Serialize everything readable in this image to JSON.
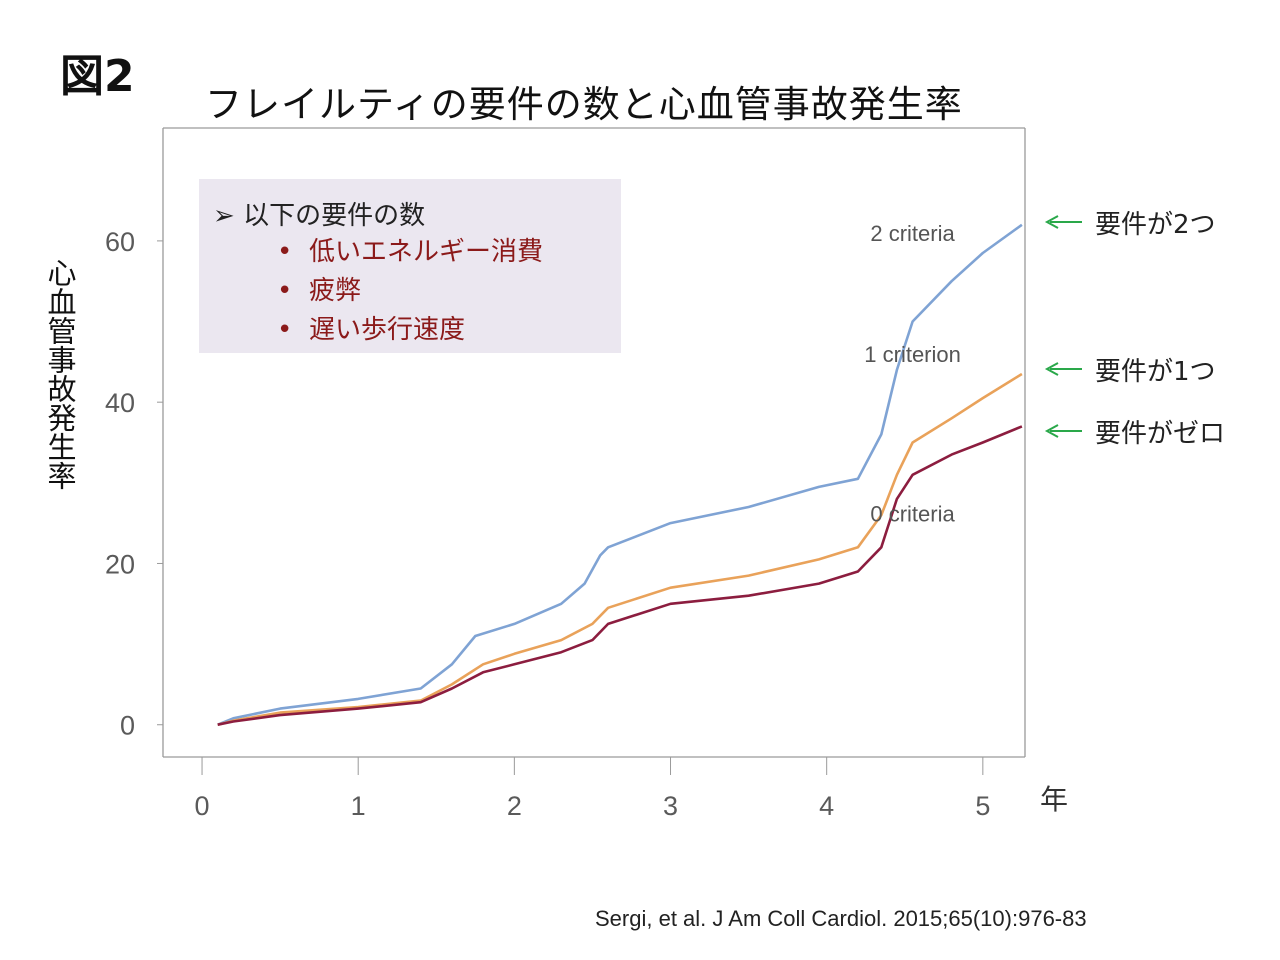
{
  "figure_label": "図2",
  "title": "フレイルティの要件の数と心血管事故発生率",
  "ylabel": "心血管事故発生率",
  "x_unit": "年",
  "criteria_box": {
    "heading": "以下の要件の数",
    "items": [
      "低いエネルギー消費",
      "疲弊",
      "遅い歩行速度"
    ]
  },
  "right_labels": [
    "要件が2つ",
    "要件が1つ",
    "要件がゼロ"
  ],
  "citation": "Sergi, et al. J Am Coll Cardiol. 2015;65(10):976-83",
  "colors": {
    "two": "#7fa3d4",
    "one": "#e9a25a",
    "zero": "#8c1d3f",
    "arrow": "#2aa84a"
  },
  "chart_data": {
    "type": "line",
    "xlim": [
      -0.25,
      5.27
    ],
    "ylim": [
      -4,
      74
    ],
    "x_ticks": [
      0,
      1,
      2,
      3,
      4,
      5
    ],
    "y_ticks": [
      0,
      20,
      40,
      60
    ],
    "series": [
      {
        "name": "2 criteria",
        "color_key": "two",
        "x": [
          0.1,
          0.2,
          0.5,
          1.0,
          1.4,
          1.6,
          1.75,
          2.0,
          2.3,
          2.45,
          2.55,
          2.6,
          3.0,
          3.5,
          3.95,
          4.2,
          4.35,
          4.45,
          4.55,
          4.8,
          5.0,
          5.25
        ],
        "y": [
          0,
          0.8,
          2.0,
          3.2,
          4.5,
          7.5,
          11.0,
          12.5,
          15.0,
          17.5,
          21.0,
          22.0,
          25.0,
          27.0,
          29.5,
          30.5,
          36.0,
          44.0,
          50.0,
          55.0,
          58.5,
          62.0
        ]
      },
      {
        "name": "1 criterion",
        "color_key": "one",
        "x": [
          0.1,
          0.2,
          0.5,
          1.0,
          1.4,
          1.6,
          1.8,
          2.0,
          2.3,
          2.5,
          2.6,
          3.0,
          3.5,
          3.95,
          4.2,
          4.35,
          4.45,
          4.55,
          4.8,
          5.0,
          5.25
        ],
        "y": [
          0,
          0.5,
          1.5,
          2.2,
          3.0,
          5.0,
          7.5,
          8.8,
          10.5,
          12.5,
          14.5,
          17.0,
          18.5,
          20.5,
          22.0,
          26.0,
          31.0,
          35.0,
          38.0,
          40.5,
          43.5
        ]
      },
      {
        "name": "0 criteria",
        "color_key": "zero",
        "x": [
          0.1,
          0.2,
          0.5,
          1.0,
          1.4,
          1.6,
          1.8,
          2.0,
          2.3,
          2.5,
          2.6,
          3.0,
          3.5,
          3.95,
          4.2,
          4.35,
          4.45,
          4.55,
          4.8,
          5.0,
          5.25
        ],
        "y": [
          0,
          0.4,
          1.2,
          2.0,
          2.8,
          4.5,
          6.5,
          7.5,
          9.0,
          10.5,
          12.5,
          15.0,
          16.0,
          17.5,
          19.0,
          22.0,
          28.0,
          31.0,
          33.5,
          35.0,
          37.0
        ]
      }
    ],
    "annotations": [
      {
        "text": "2 criteria",
        "x": 4.55,
        "y": 60.0
      },
      {
        "text": "1 criterion",
        "x": 4.55,
        "y": 45.0
      },
      {
        "text": "0 criteria",
        "x": 4.55,
        "y": 25.2
      }
    ]
  }
}
